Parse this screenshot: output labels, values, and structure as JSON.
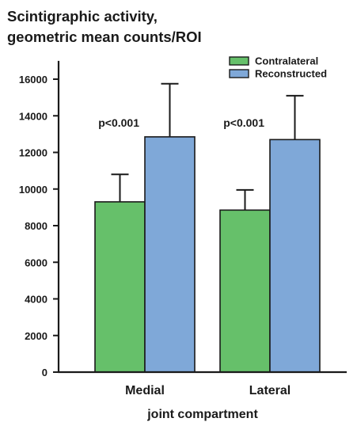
{
  "chart_data": {
    "type": "bar",
    "title_lines": [
      "Scintigraphic activity,",
      "geometric mean counts/ROI"
    ],
    "xlabel": "joint compartment",
    "ylabel": "",
    "categories": [
      "Medial",
      "Lateral"
    ],
    "series": [
      {
        "name": "Contralateral",
        "color": "#66c06a",
        "values": [
          9300,
          8850
        ],
        "error": [
          1500,
          1100
        ]
      },
      {
        "name": "Reconstructed",
        "color": "#7fa8d8",
        "values": [
          12850,
          12700
        ],
        "error": [
          2900,
          2400
        ]
      }
    ],
    "annotations": [
      "p<0.001",
      "p<0.001"
    ],
    "yticks": [
      0,
      2000,
      4000,
      6000,
      8000,
      10000,
      12000,
      14000,
      16000
    ],
    "ylim": [
      0,
      17000
    ],
    "grid": false,
    "legend_position": "top-right"
  }
}
